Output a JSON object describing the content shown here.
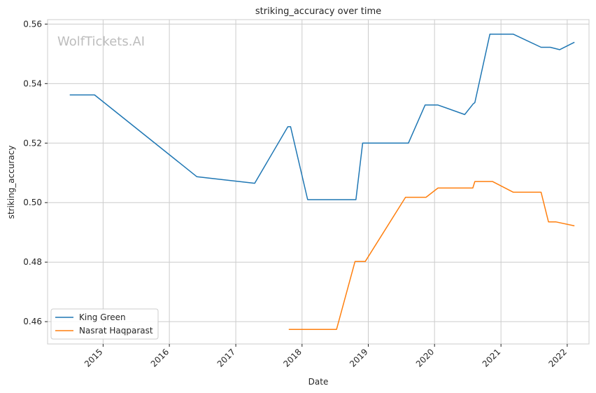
{
  "watermark": "WolfTickets.AI",
  "chart_data": {
    "type": "line",
    "title": "striking_accuracy over time",
    "xlabel": "Date",
    "ylabel": "striking_accuracy",
    "x_ticks": [
      "2015",
      "2016",
      "2017",
      "2018",
      "2019",
      "2020",
      "2021",
      "2022"
    ],
    "y_ticks": [
      "0.46",
      "0.48",
      "0.50",
      "0.52",
      "0.54",
      "0.56"
    ],
    "xlim": [
      "2014-03-01",
      "2022-05-01"
    ],
    "ylim": [
      0.4525,
      0.5615
    ],
    "grid": true,
    "legend_position": "lower-left",
    "series": [
      {
        "name": "King Green",
        "color": "#1f77b4",
        "points": [
          [
            "2014-07-01",
            0.5362
          ],
          [
            "2014-11-15",
            0.5362
          ],
          [
            "2016-06-01",
            0.5087
          ],
          [
            "2017-04-15",
            0.5065
          ],
          [
            "2017-10-15",
            0.5255
          ],
          [
            "2017-10-30",
            0.5255
          ],
          [
            "2018-02-01",
            0.501
          ],
          [
            "2018-10-25",
            0.501
          ],
          [
            "2018-12-01",
            0.52
          ],
          [
            "2019-08-10",
            0.52
          ],
          [
            "2019-11-10",
            0.5328
          ],
          [
            "2020-01-20",
            0.5328
          ],
          [
            "2020-06-15",
            0.5296
          ],
          [
            "2020-08-01",
            0.5332
          ],
          [
            "2020-08-10",
            0.5336
          ],
          [
            "2020-11-01",
            0.5566
          ],
          [
            "2021-03-10",
            0.5566
          ],
          [
            "2021-08-10",
            0.5522
          ],
          [
            "2021-09-30",
            0.5522
          ],
          [
            "2021-11-20",
            0.5514
          ],
          [
            "2022-02-10",
            0.5539
          ]
        ]
      },
      {
        "name": "Nasrat Haqparast",
        "color": "#ff7f0e",
        "points": [
          [
            "2017-10-20",
            0.4574
          ],
          [
            "2018-07-10",
            0.4574
          ],
          [
            "2018-10-20",
            0.4802
          ],
          [
            "2018-12-15",
            0.4802
          ],
          [
            "2019-07-25",
            0.5018
          ],
          [
            "2019-11-15",
            0.5018
          ],
          [
            "2020-01-20",
            0.5049
          ],
          [
            "2020-07-30",
            0.5049
          ],
          [
            "2020-08-10",
            0.5071
          ],
          [
            "2020-11-15",
            0.5071
          ],
          [
            "2021-03-10",
            0.5035
          ],
          [
            "2021-08-10",
            0.5035
          ],
          [
            "2021-09-20",
            0.4935
          ],
          [
            "2021-11-01",
            0.4935
          ],
          [
            "2022-02-10",
            0.4922
          ]
        ]
      }
    ]
  }
}
